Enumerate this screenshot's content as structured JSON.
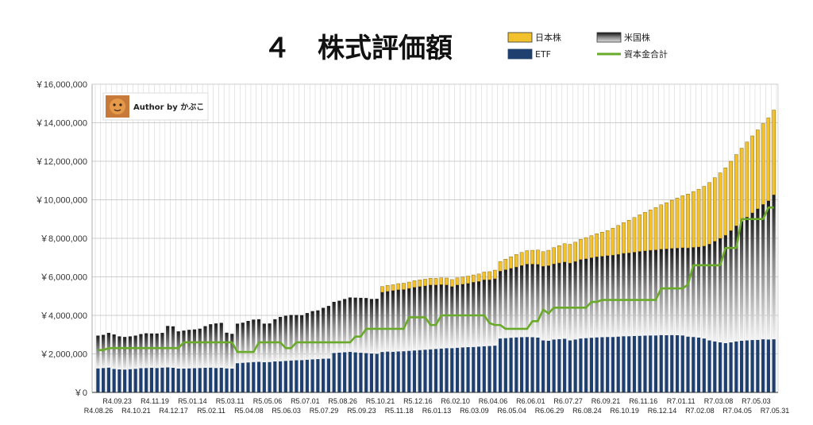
{
  "chart_data": {
    "type": "bar",
    "title": "４　株式評価額",
    "watermark": "Author by かぶこ",
    "stacked": true,
    "ylim": [
      0,
      16000000
    ],
    "yticks": [
      0,
      2000000,
      4000000,
      6000000,
      8000000,
      10000000,
      12000000,
      14000000,
      16000000
    ],
    "ytick_labels": [
      "￥0",
      "￥2,000,000",
      "￥4,000,000",
      "￥6,000,000",
      "￥8,000,000",
      "￥10,000,000",
      "￥12,000,000",
      "￥14,000,000",
      "￥16,000,000"
    ],
    "grid": true,
    "legend": [
      {
        "name": "日本株",
        "type": "bar",
        "color": "#f2c12e"
      },
      {
        "name": "米国株",
        "type": "bar",
        "color": "#555555"
      },
      {
        "name": "ETF",
        "type": "bar",
        "color": "#1f3f6e"
      },
      {
        "name": "資本金合計",
        "type": "line",
        "color": "#6aaa2a"
      }
    ],
    "colors": {
      "japan": "#f2c12e",
      "us": "#555555",
      "etf": "#1f3f6e",
      "capital": "#6aaa2a"
    },
    "x_labels_top": [
      "R4.09.23",
      "R4.11.19",
      "R5.01.14",
      "R5.03.11",
      "R5.05.06",
      "R5.07.01",
      "R5.08.26",
      "R5.10.21",
      "R5.12.16",
      "R6.02.10",
      "R6.04.06",
      "R6.06.01",
      "R6.07.27",
      "R6.09.21",
      "R6.11.16",
      "R7.01.11",
      "R7.03.08",
      "R7.05.03"
    ],
    "x_labels_bottom": [
      "R4.08.26",
      "R4.10.21",
      "R4.12.17",
      "R5.02.11",
      "R5.04.08",
      "R5.06.03",
      "R5.07.29",
      "R5.09.23",
      "R5.11.18",
      "R6.01.13",
      "R6.03.09",
      "R6.05.04",
      "R6.06.29",
      "R6.08.24",
      "R6.10.19",
      "R6.12.14",
      "R7.02.08",
      "R7.04.05",
      "R7.05.31"
    ],
    "series": [
      {
        "name": "ETF",
        "values": [
          1250000,
          1270000,
          1290000,
          1220000,
          1200000,
          1190000,
          1210000,
          1230000,
          1260000,
          1270000,
          1280000,
          1270000,
          1290000,
          1300000,
          1280000,
          1240000,
          1240000,
          1250000,
          1260000,
          1270000,
          1280000,
          1290000,
          1270000,
          1280000,
          1250000,
          1240000,
          1520000,
          1540000,
          1560000,
          1580000,
          1590000,
          1570000,
          1580000,
          1610000,
          1620000,
          1640000,
          1660000,
          1670000,
          1680000,
          1700000,
          1720000,
          1730000,
          1750000,
          1760000,
          2050000,
          2070000,
          2090000,
          2110000,
          2080000,
          2060000,
          2040000,
          2020000,
          2010000,
          2100000,
          2120000,
          2110000,
          2130000,
          2140000,
          2160000,
          2180000,
          2200000,
          2220000,
          2240000,
          2260000,
          2280000,
          2300000,
          2300000,
          2320000,
          2340000,
          2350000,
          2360000,
          2380000,
          2400000,
          2410000,
          2430000,
          2800000,
          2820000,
          2840000,
          2860000,
          2870000,
          2880000,
          2870000,
          2850000,
          2700000,
          2680000,
          2750000,
          2770000,
          2790000,
          2700000,
          2750000,
          2800000,
          2820000,
          2840000,
          2860000,
          2870000,
          2880000,
          2880000,
          2900000,
          2920000,
          2920000,
          2930000,
          2940000,
          2950000,
          2960000,
          2960000,
          2980000,
          2970000,
          2980000,
          2970000,
          2960000,
          2900000,
          2880000,
          2850000,
          2800000,
          2700000,
          2650000,
          2600000,
          2560000,
          2600000,
          2650000,
          2680000,
          2700000,
          2720000,
          2730000,
          2760000,
          2750000,
          2760000
        ]
      },
      {
        "name": "米国株",
        "values": [
          1700000,
          1720000,
          1800000,
          1790000,
          1710000,
          1690000,
          1700000,
          1720000,
          1770000,
          1800000,
          1780000,
          1790000,
          1800000,
          2150000,
          2150000,
          1930000,
          1970000,
          2000000,
          2010000,
          2040000,
          2160000,
          2250000,
          2310000,
          2330000,
          1850000,
          1800000,
          2050000,
          2080000,
          2150000,
          2200000,
          2210000,
          2000000,
          2000000,
          2190000,
          2300000,
          2340000,
          2360000,
          2350000,
          2330000,
          2420000,
          2500000,
          2530000,
          2640000,
          2730000,
          2650000,
          2690000,
          2760000,
          2820000,
          2840000,
          2850000,
          2860000,
          2830000,
          2850000,
          3100000,
          3130000,
          3180000,
          3200000,
          3200000,
          3240000,
          3280000,
          3300000,
          3310000,
          3340000,
          3320000,
          3320000,
          3280000,
          3200000,
          3260000,
          3280000,
          3310000,
          3360000,
          3380000,
          3450000,
          3440000,
          3470000,
          3500000,
          3550000,
          3600000,
          3650000,
          3720000,
          3780000,
          3790000,
          3800000,
          3850000,
          3900000,
          3920000,
          3950000,
          3980000,
          4010000,
          4050000,
          4100000,
          4120000,
          4150000,
          4180000,
          4200000,
          4220000,
          4250000,
          4270000,
          4300000,
          4320000,
          4350000,
          4380000,
          4400000,
          4420000,
          4440000,
          4460000,
          4480000,
          4500000,
          4520000,
          4550000,
          4600000,
          4650000,
          4700000,
          4800000,
          5000000,
          5200000,
          5400000,
          5600000,
          5800000,
          6000000,
          6200000,
          6400000,
          6600000,
          6800000,
          7000000,
          7200000,
          7500000
        ]
      },
      {
        "name": "日本株",
        "values": [
          0,
          0,
          0,
          0,
          0,
          0,
          0,
          0,
          0,
          0,
          0,
          0,
          0,
          0,
          0,
          0,
          0,
          0,
          0,
          0,
          0,
          0,
          0,
          0,
          0,
          0,
          0,
          0,
          0,
          0,
          0,
          0,
          0,
          0,
          0,
          0,
          0,
          0,
          0,
          0,
          0,
          0,
          0,
          0,
          0,
          0,
          0,
          0,
          0,
          0,
          0,
          0,
          0,
          300000,
          310000,
          300000,
          320000,
          330000,
          330000,
          340000,
          340000,
          350000,
          350000,
          340000,
          350000,
          360000,
          360000,
          370000,
          370000,
          380000,
          380000,
          390000,
          400000,
          420000,
          450000,
          500000,
          550000,
          600000,
          650000,
          680000,
          700000,
          720000,
          740000,
          760000,
          800000,
          850000,
          900000,
          950000,
          980000,
          1000000,
          1050000,
          1100000,
          1150000,
          1200000,
          1250000,
          1300000,
          1400000,
          1500000,
          1600000,
          1700000,
          1800000,
          1900000,
          2000000,
          2100000,
          2200000,
          2300000,
          2400000,
          2500000,
          2600000,
          2700000,
          2800000,
          2900000,
          3000000,
          3100000,
          3200000,
          3300000,
          3400000,
          3500000,
          3600000,
          3700000,
          3800000,
          3900000,
          4000000,
          4100000,
          4200000,
          4300000,
          4400000,
          4400000,
          4420000
        ]
      },
      {
        "name": "資本金合計",
        "type": "line",
        "values": [
          2200000,
          2200000,
          2300000,
          2300000,
          2300000,
          2300000,
          2300000,
          2300000,
          2300000,
          2300000,
          2300000,
          2300000,
          2300000,
          2300000,
          2300000,
          2300000,
          2600000,
          2600000,
          2600000,
          2600000,
          2600000,
          2600000,
          2600000,
          2600000,
          2600000,
          2600000,
          2100000,
          2100000,
          2100000,
          2100000,
          2600000,
          2600000,
          2600000,
          2600000,
          2600000,
          2300000,
          2300000,
          2600000,
          2600000,
          2600000,
          2600000,
          2600000,
          2600000,
          2600000,
          2600000,
          2600000,
          2600000,
          2600000,
          2900000,
          2900000,
          3300000,
          3300000,
          3300000,
          3300000,
          3300000,
          3300000,
          3300000,
          3300000,
          3900000,
          3900000,
          3900000,
          3900000,
          3500000,
          3500000,
          4000000,
          4000000,
          4000000,
          4000000,
          4000000,
          4000000,
          4000000,
          4000000,
          4000000,
          3600000,
          3500000,
          3500000,
          3300000,
          3300000,
          3300000,
          3300000,
          3300000,
          3700000,
          3700000,
          4300000,
          4100000,
          4400000,
          4400000,
          4400000,
          4400000,
          4400000,
          4400000,
          4400000,
          4700000,
          4700000,
          4800000,
          4800000,
          4800000,
          4800000,
          4800000,
          4800000,
          4800000,
          4800000,
          4800000,
          4800000,
          4800000,
          5400000,
          5400000,
          5400000,
          5400000,
          5400000,
          5600000,
          6600000,
          6600000,
          6600000,
          6600000,
          6600000,
          6600000,
          7500000,
          7500000,
          7500000,
          9000000,
          9000000,
          9000000,
          9000000,
          9000000,
          9600000,
          9600000,
          9600000,
          9600000
        ]
      }
    ]
  }
}
